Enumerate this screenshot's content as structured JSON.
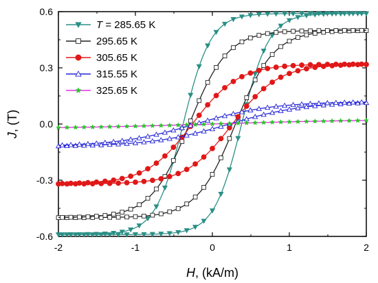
{
  "chart_data": {
    "type": "line",
    "xlabel": {
      "var": "H",
      "rest": ", (kA/m)"
    },
    "ylabel": {
      "var": "J",
      "rest": ", (T)"
    },
    "xlim": [
      -2,
      2
    ],
    "ylim": [
      -0.6,
      0.6
    ],
    "xticks": [
      "-2",
      "-1",
      "0",
      "1",
      "2"
    ],
    "yticks": [
      "-0.6",
      "-0.3",
      "0.0",
      "0.3",
      "0.6"
    ],
    "legend_placement": "top-left",
    "series": [
      {
        "name": "T = 285.65 K",
        "legend_var": "T",
        "legend_rest": " = 285.65 K",
        "color": "#2a8f86",
        "marker": "triangle-down-filled",
        "Js": 0.59,
        "Hc": 0.38,
        "w": 0.36
      },
      {
        "name": "295.65 K",
        "legend_rest": "295.65 K",
        "color": "#222222",
        "marker": "square-open",
        "Js": 0.5,
        "Hc": 0.3,
        "w": 0.5
      },
      {
        "name": "305.65 K",
        "legend_rest": "305.65 K",
        "color": "#e01818",
        "marker": "circle-filled",
        "Js": 0.32,
        "Hc": 0.26,
        "w": 0.6
      },
      {
        "name": "315.55 K",
        "legend_rest": "315.55 K",
        "color": "#2424d6",
        "marker": "triangle-up-open",
        "Js": 0.12,
        "Hc": 0.22,
        "w": 1.0
      },
      {
        "name": "325.65 K",
        "legend_rest": "325.65 K",
        "color": "#e030e0",
        "marker": "star-green",
        "marker_color": "#22c822",
        "Js": 0.025,
        "Hc": 0.0,
        "w": 2.0
      }
    ]
  }
}
